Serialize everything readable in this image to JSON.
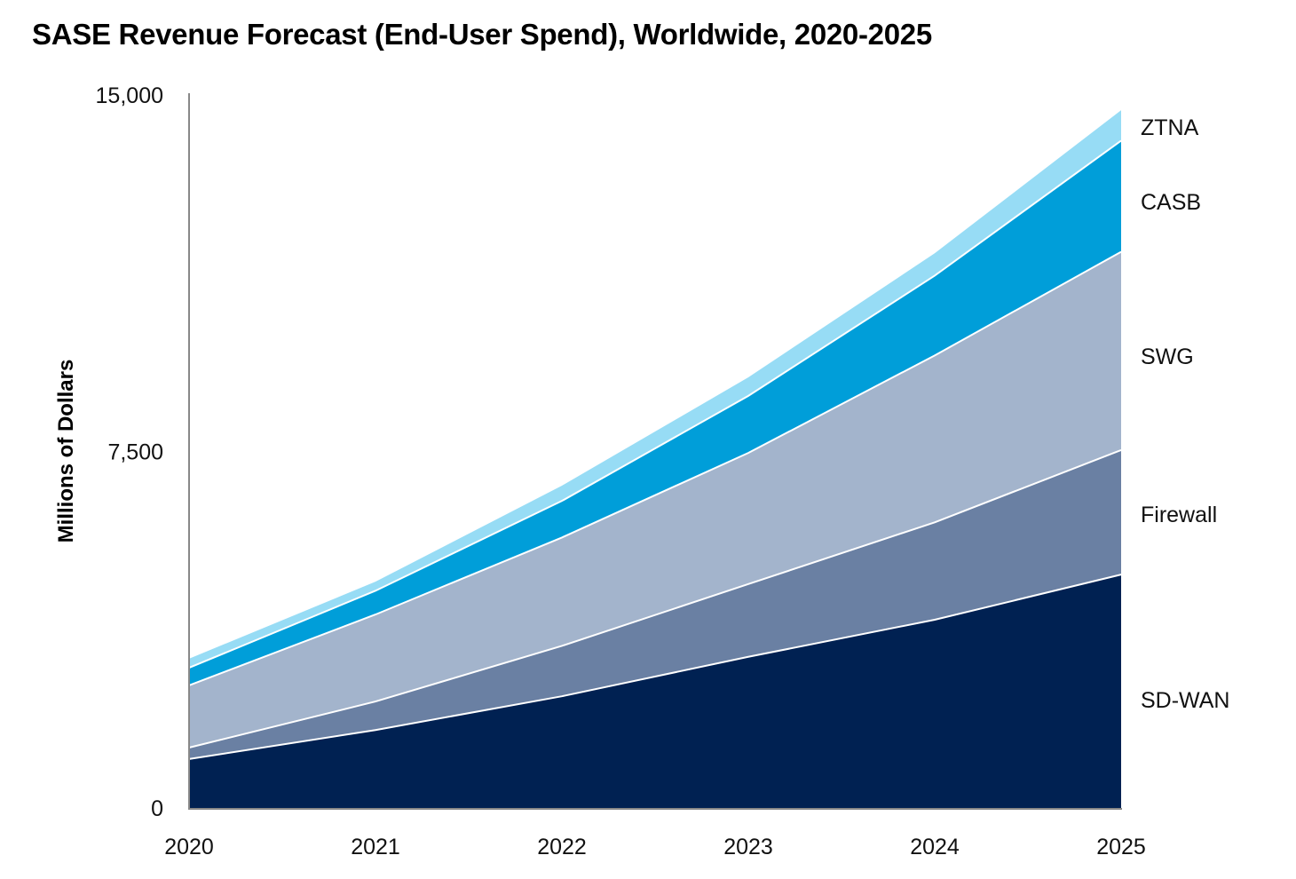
{
  "chart_data": {
    "type": "area",
    "stacked": true,
    "title": "SASE Revenue Forecast (End-User Spend), Worldwide, 2020-2025",
    "xlabel": "",
    "ylabel": "Millions of Dollars",
    "ylim": [
      0,
      15000
    ],
    "yticks": [
      0,
      7500,
      15000
    ],
    "ytick_labels": [
      "0",
      "7,500",
      "15,000"
    ],
    "x": [
      "2020",
      "2021",
      "2022",
      "2023",
      "2024",
      "2025"
    ],
    "grid": false,
    "legend_position": "right (inline labels)",
    "series": [
      {
        "name": "SD-WAN",
        "color": "#002152",
        "values": [
          1030,
          1640,
          2350,
          3180,
          3960,
          4910
        ]
      },
      {
        "name": "Firewall",
        "color": "#6a80a3",
        "values": [
          240,
          600,
          1060,
          1530,
          2050,
          2620
        ]
      },
      {
        "name": "SWG",
        "color": "#a3b4cc",
        "values": [
          1310,
          1830,
          2280,
          2760,
          3510,
          4170
        ]
      },
      {
        "name": "CASB",
        "color": "#009ed9",
        "values": [
          370,
          500,
          770,
          1200,
          1680,
          2340
        ]
      },
      {
        "name": "ZTNA",
        "color": "#97dcf5",
        "values": [
          190,
          190,
          320,
          390,
          470,
          640
        ]
      }
    ]
  }
}
